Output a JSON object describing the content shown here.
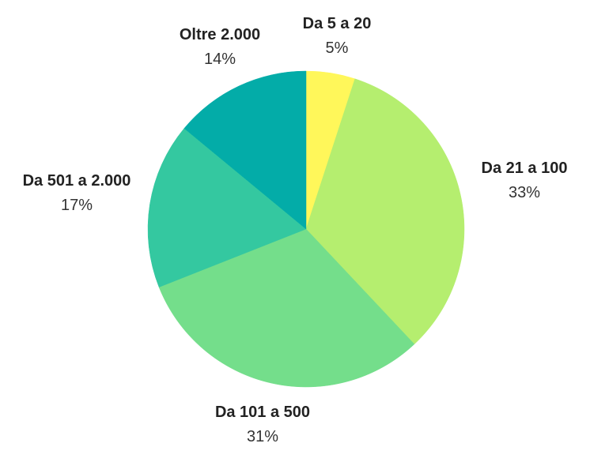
{
  "chart_data": {
    "type": "pie",
    "title": "",
    "start_angle_deg": 0,
    "direction": "clockwise",
    "slices": [
      {
        "label": "Da 5 a 20",
        "value": 5,
        "display": "5%",
        "color": "#FFF75A"
      },
      {
        "label": "Da 21 a 100",
        "value": 33,
        "display": "33%",
        "color": "#B5EE6F"
      },
      {
        "label": "Da 101 a 500",
        "value": 31,
        "display": "31%",
        "color": "#74DE8B"
      },
      {
        "label": "Da 501 a 2.000",
        "value": 17,
        "display": "17%",
        "color": "#34C8A0"
      },
      {
        "label": "Oltre 2.000",
        "value": 14,
        "display": "14%",
        "color": "#03ACA8"
      }
    ]
  }
}
